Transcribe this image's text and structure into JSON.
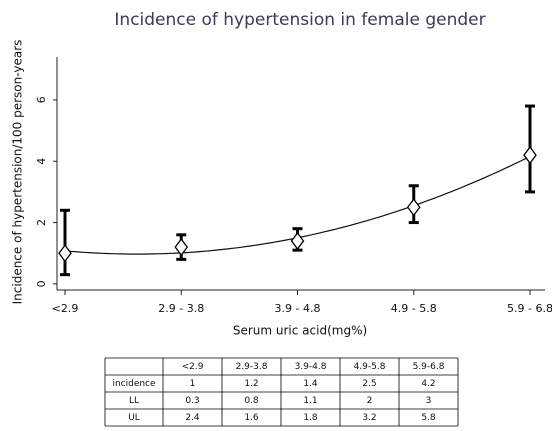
{
  "chart_data": {
    "type": "errorbar",
    "title": "Incidence of hypertension in female gender",
    "ylabel": "Incidence of hypertension/100 person-years",
    "xlabel": "Serum uric acid(mg%)",
    "categories": [
      "<2.9",
      "2.9 - 3.8",
      "3.9 - 4.8",
      "4.9 - 5.8",
      "5.9 - 6.8"
    ],
    "values": [
      1,
      1.2,
      1.4,
      2.5,
      4.2
    ],
    "lower": [
      0.3,
      0.8,
      1.1,
      2,
      3
    ],
    "upper": [
      2.4,
      1.6,
      1.8,
      3.2,
      5.8
    ],
    "ylim": [
      -0.2,
      7.4
    ],
    "yticks": [
      0,
      2,
      4,
      6
    ],
    "table": {
      "columns": [
        "<2.9",
        "2.9-3.8",
        "3.9-4.8",
        "4.9-5.8",
        "5.9-6.8"
      ],
      "row_labels": [
        "incidence",
        "LL",
        "UL"
      ]
    }
  }
}
